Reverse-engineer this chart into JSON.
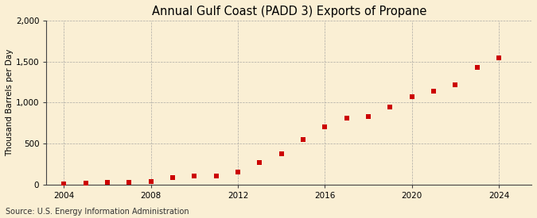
{
  "title": "Annual Gulf Coast (PADD 3) Exports of Propane",
  "ylabel": "Thousand Barrels per Day",
  "source": "Source: U.S. Energy Information Administration",
  "background_color": "#faefd4",
  "marker_color": "#cc0000",
  "grid_color": "#999999",
  "years": [
    2004,
    2005,
    2006,
    2007,
    2008,
    2009,
    2010,
    2011,
    2012,
    2013,
    2014,
    2015,
    2016,
    2017,
    2018,
    2019,
    2020,
    2021,
    2022,
    2023,
    2024
  ],
  "values": [
    8,
    18,
    28,
    22,
    38,
    82,
    98,
    102,
    148,
    270,
    370,
    550,
    698,
    808,
    832,
    948,
    1072,
    1138,
    1218,
    1428,
    1542
  ],
  "ylim": [
    0,
    2000
  ],
  "yticks": [
    0,
    500,
    1000,
    1500,
    2000
  ],
  "ytick_labels": [
    "0",
    "500",
    "1,000",
    "1,500",
    "2,000"
  ],
  "xticks": [
    2004,
    2008,
    2012,
    2016,
    2020,
    2024
  ],
  "xlim": [
    2003.2,
    2025.5
  ],
  "title_fontsize": 10.5,
  "label_fontsize": 7.5,
  "tick_fontsize": 7.5,
  "source_fontsize": 7
}
